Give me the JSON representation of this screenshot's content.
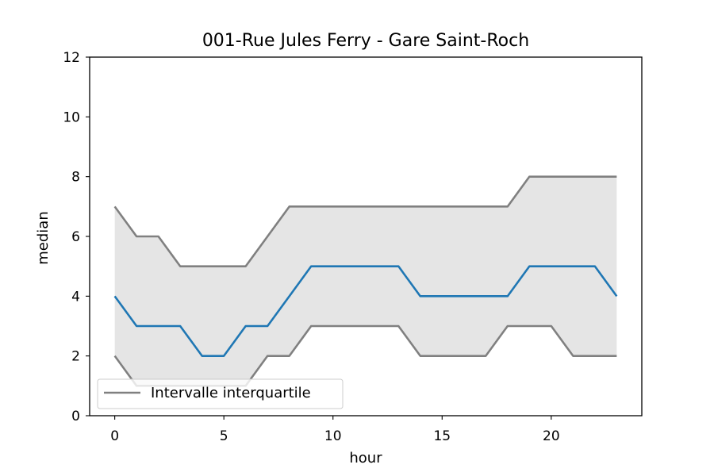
{
  "chart_data": {
    "type": "line",
    "title": "001-Rue Jules Ferry - Gare Saint-Roch",
    "xlabel": "hour",
    "ylabel": "median",
    "xlim": [
      -1.15,
      24.15
    ],
    "ylim": [
      0,
      12
    ],
    "xticks": [
      0,
      5,
      10,
      15,
      20
    ],
    "yticks": [
      0,
      2,
      4,
      6,
      8,
      10,
      12
    ],
    "grid": false,
    "legend": {
      "placement": "lower-left",
      "entries": [
        "Intervalle interquartile"
      ]
    },
    "x": [
      0,
      1,
      2,
      3,
      4,
      5,
      6,
      7,
      8,
      9,
      10,
      11,
      12,
      13,
      14,
      15,
      16,
      17,
      18,
      19,
      20,
      21,
      22,
      23
    ],
    "series": [
      {
        "role": "median",
        "color": "#1f77b4",
        "values": [
          4,
          3,
          3,
          3,
          2,
          2,
          3,
          3,
          4,
          5,
          5,
          5,
          5,
          5,
          4,
          4,
          4,
          4,
          4,
          5,
          5,
          5,
          5,
          4
        ]
      },
      {
        "role": "q3",
        "color": "#808080",
        "values": [
          7,
          6,
          6,
          5,
          5,
          5,
          5,
          6,
          7,
          7,
          7,
          7,
          7,
          7,
          7,
          7,
          7,
          7,
          7,
          8,
          8,
          8,
          8,
          8
        ]
      },
      {
        "role": "q1",
        "color": "#808080",
        "values": [
          2,
          1,
          1,
          1,
          1,
          1,
          1,
          2,
          2,
          3,
          3,
          3,
          3,
          3,
          2,
          2,
          2,
          2,
          3,
          3,
          3,
          2,
          2,
          2
        ]
      }
    ],
    "band_color": "#e5e5e5"
  }
}
